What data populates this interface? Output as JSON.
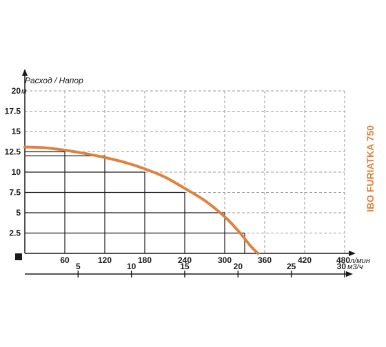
{
  "chart_data": {
    "type": "line",
    "title": "Расход / Напор",
    "model": "IBO FURIATKA 750",
    "y_axis": {
      "unit": "м",
      "ticks": [
        "2.5",
        "5",
        "7.5",
        "10",
        "12.5",
        "15",
        "17.5",
        "20"
      ],
      "ylim": [
        0,
        20
      ]
    },
    "x_axis": {
      "unit": "л/мин",
      "ticks": [
        "60",
        "120",
        "180",
        "240",
        "300",
        "360",
        "420",
        "480"
      ],
      "xlim": [
        0,
        480
      ]
    },
    "x2_axis": {
      "unit": "м3/ч",
      "ticks": [
        "5",
        "10",
        "15",
        "20",
        "25",
        "30"
      ],
      "xlim": [
        0,
        30
      ]
    },
    "grid": true,
    "series": [
      {
        "color": "#e0823f",
        "x": [
          0,
          30,
          60,
          90,
          120,
          150,
          180,
          210,
          240,
          270,
          300,
          320,
          340,
          350
        ],
        "y": [
          13.1,
          13.0,
          12.7,
          12.3,
          11.8,
          11.2,
          10.4,
          9.4,
          8.0,
          6.5,
          4.5,
          2.8,
          0.8,
          0
        ]
      }
    ],
    "guides": [
      {
        "x": 60,
        "y": 12.5
      },
      {
        "x": 120,
        "y": 12.0
      },
      {
        "x": 180,
        "y": 10.0
      },
      {
        "x": 240,
        "y": 7.5
      },
      {
        "x": 300,
        "y": 5.0
      },
      {
        "x": 330,
        "y": 2.5
      }
    ]
  }
}
